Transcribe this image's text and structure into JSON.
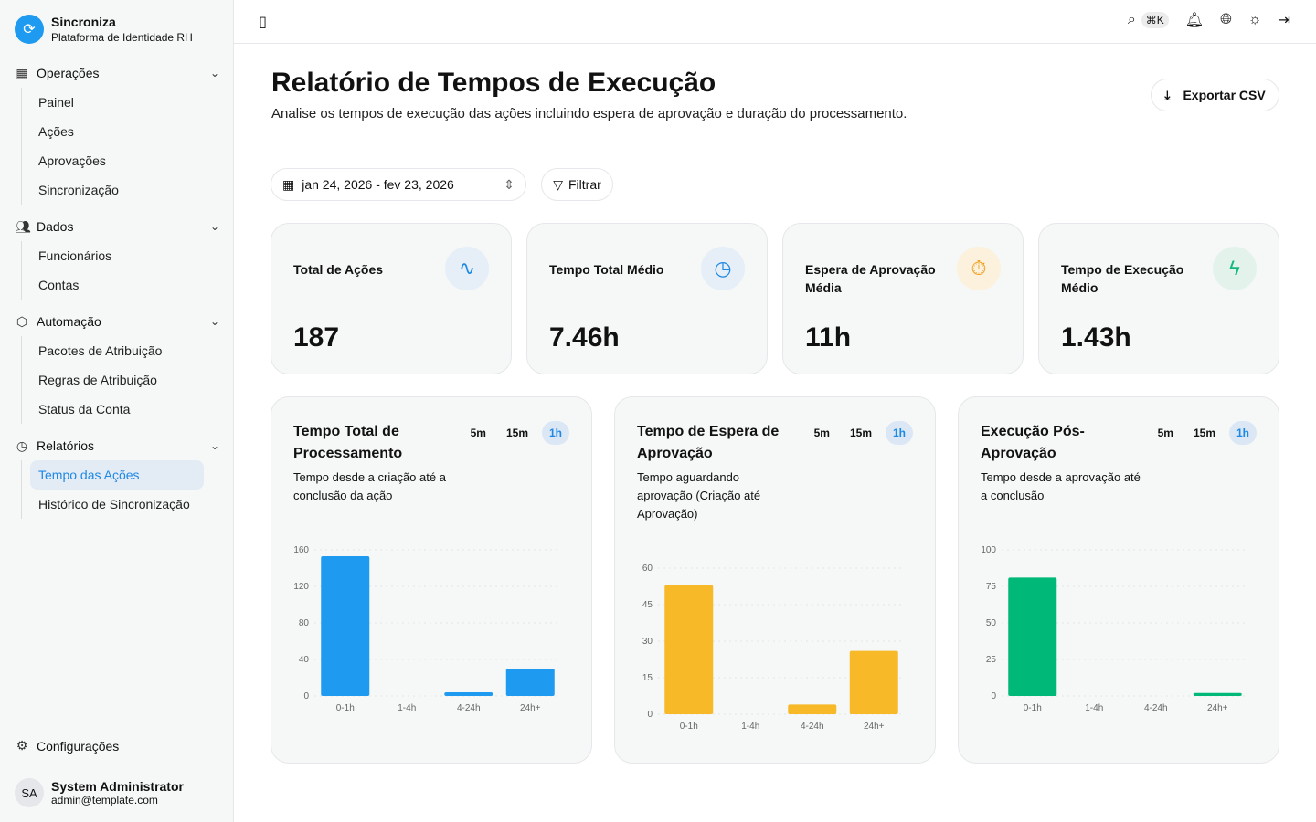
{
  "app": {
    "name": "Sincroniza",
    "subtitle": "Plataforma de Identidade RH"
  },
  "sidebar": {
    "groups": [
      {
        "label": "Operações",
        "icon": "grid-icon",
        "items": [
          "Painel",
          "Ações",
          "Aprovações",
          "Sincronização"
        ]
      },
      {
        "label": "Dados",
        "icon": "users-icon",
        "items": [
          "Funcionários",
          "Contas"
        ]
      },
      {
        "label": "Automação",
        "icon": "package-icon",
        "items": [
          "Pacotes de Atribuição",
          "Regras de Atribuição",
          "Status da Conta"
        ]
      },
      {
        "label": "Relatórios",
        "icon": "clock-icon",
        "items": [
          "Tempo das Ações",
          "Histórico de Sincronização"
        ]
      }
    ],
    "active": "Tempo das Ações",
    "settings": "Configurações",
    "user": {
      "initials": "SA",
      "name": "System Administrator",
      "email": "admin@template.com"
    }
  },
  "topbar": {
    "shortcut": "⌘K"
  },
  "page": {
    "title": "Relatório de Tempos de Execução",
    "description": "Analise os tempos de execução das ações incluindo espera de aprovação e duração do processamento.",
    "export": "Exportar CSV",
    "date_range": "jan 24, 2026 - fev 23, 2026",
    "filter": "Filtrar"
  },
  "stats": [
    {
      "label": "Total de Ações",
      "value": "187",
      "icon": "activity-icon",
      "color": "#1e88e5",
      "bg": "#e6eef8"
    },
    {
      "label": "Tempo Total Médio",
      "value": "7.46h",
      "icon": "clock-icon",
      "color": "#1e88e5",
      "bg": "#e6eef8"
    },
    {
      "label": "Espera de Aprovação Média",
      "value": "11h",
      "icon": "timer-icon",
      "color": "#f0a020",
      "bg": "#fbf1dc"
    },
    {
      "label": "Tempo de Execução Médio",
      "value": "1.43h",
      "icon": "zap-icon",
      "color": "#10b981",
      "bg": "#e3f3ec"
    }
  ],
  "ranges": [
    "5m",
    "15m",
    "1h"
  ],
  "selected_range": "1h",
  "chart_data": [
    {
      "type": "bar",
      "title": "Tempo Total de Processamento",
      "subtitle": "Tempo desde a criação até a conclusão da ação",
      "categories": [
        "0-1h",
        "1-4h",
        "4-24h",
        "24h+"
      ],
      "values": [
        153,
        0,
        4,
        30
      ],
      "yticks": [
        0,
        40,
        80,
        120,
        160
      ],
      "ylim": [
        0,
        160
      ],
      "color": "#1e9bf0",
      "grid": true
    },
    {
      "type": "bar",
      "title": "Tempo de Espera de Aprovação",
      "subtitle": "Tempo aguardando aprovação (Criação até Aprovação)",
      "categories": [
        "0-1h",
        "1-4h",
        "4-24h",
        "24h+"
      ],
      "values": [
        53,
        0,
        4,
        26
      ],
      "yticks": [
        0,
        15,
        30,
        45,
        60
      ],
      "ylim": [
        0,
        60
      ],
      "color": "#f7b928",
      "grid": true
    },
    {
      "type": "bar",
      "title": "Execução Pós-Aprovação",
      "subtitle": "Tempo desde a aprovação até a conclusão",
      "categories": [
        "0-1h",
        "1-4h",
        "4-24h",
        "24h+"
      ],
      "values": [
        81,
        0,
        0,
        2
      ],
      "yticks": [
        0,
        25,
        50,
        75,
        100
      ],
      "ylim": [
        0,
        100
      ],
      "color": "#00b877",
      "grid": true
    }
  ]
}
